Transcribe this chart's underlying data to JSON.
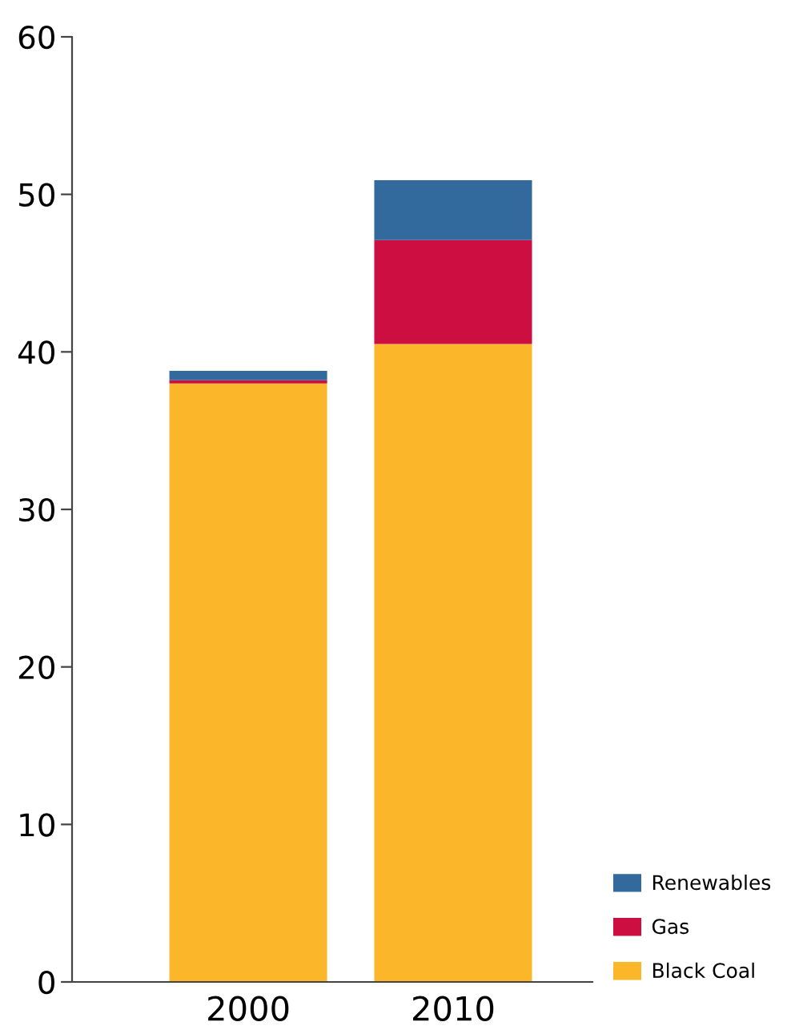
{
  "chart_data": {
    "type": "bar",
    "stacked": true,
    "categories": [
      "2000",
      "2010"
    ],
    "series": [
      {
        "name": "Black Coal",
        "color": "#fbb62a",
        "values": [
          38.0,
          40.5
        ]
      },
      {
        "name": "Gas",
        "color": "#cd0e40",
        "values": [
          0.2,
          6.6
        ]
      },
      {
        "name": "Renewables",
        "color": "#336a9e",
        "values": [
          0.6,
          3.8
        ]
      }
    ],
    "ylim": [
      0,
      60
    ],
    "yticks": [
      0,
      10,
      20,
      30,
      40,
      50,
      60
    ],
    "grid": false,
    "legend": "bottom right"
  }
}
